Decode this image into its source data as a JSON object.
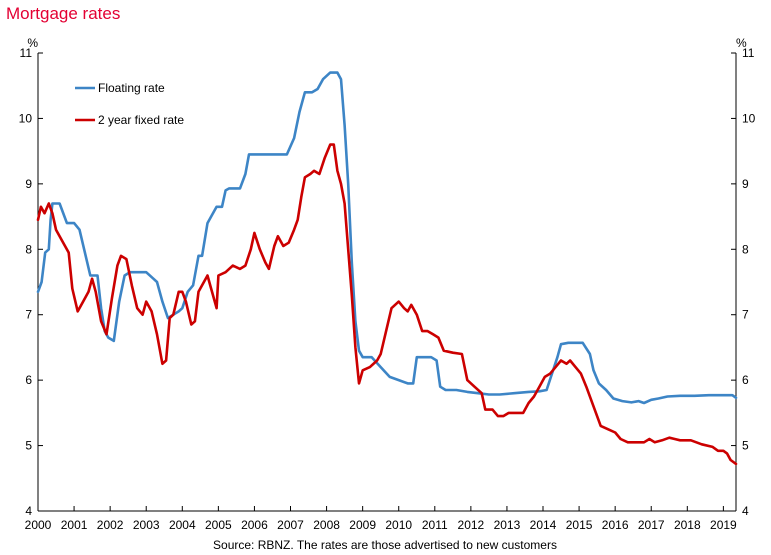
{
  "title": "Mortgage rates",
  "colors": {
    "title": "#e30033",
    "floating": "#3d85c6",
    "fixed": "#cc0000",
    "axis": "#000000"
  },
  "chart_data": {
    "type": "line",
    "title": "Mortgage rates",
    "y_unit_left": "%",
    "y_unit_right": "%",
    "ylim": [
      4,
      11
    ],
    "xlim": [
      2000,
      2019.35
    ],
    "y_ticks": [
      4,
      5,
      6,
      7,
      8,
      9,
      10,
      11
    ],
    "x_ticks": [
      2000,
      2001,
      2002,
      2003,
      2004,
      2005,
      2006,
      2007,
      2008,
      2009,
      2010,
      2011,
      2012,
      2013,
      2014,
      2015,
      2016,
      2017,
      2018,
      2019
    ],
    "grid": false,
    "legend_position": "top-left",
    "source": "Source: RBNZ. The rates are those advertised to new customers",
    "series": [
      {
        "name": "Floating rate",
        "color": "#3d85c6",
        "points": [
          [
            2000.0,
            7.35
          ],
          [
            2000.1,
            7.5
          ],
          [
            2000.2,
            7.95
          ],
          [
            2000.3,
            8.0
          ],
          [
            2000.35,
            8.45
          ],
          [
            2000.4,
            8.7
          ],
          [
            2000.6,
            8.7
          ],
          [
            2000.8,
            8.4
          ],
          [
            2001.0,
            8.4
          ],
          [
            2001.15,
            8.3
          ],
          [
            2001.3,
            7.95
          ],
          [
            2001.45,
            7.6
          ],
          [
            2001.65,
            7.6
          ],
          [
            2001.75,
            7.1
          ],
          [
            2001.85,
            6.75
          ],
          [
            2001.95,
            6.65
          ],
          [
            2002.1,
            6.6
          ],
          [
            2002.25,
            7.2
          ],
          [
            2002.4,
            7.6
          ],
          [
            2002.55,
            7.65
          ],
          [
            2002.7,
            7.65
          ],
          [
            2003.0,
            7.65
          ],
          [
            2003.2,
            7.55
          ],
          [
            2003.3,
            7.5
          ],
          [
            2003.45,
            7.2
          ],
          [
            2003.6,
            6.95
          ],
          [
            2003.75,
            7.0
          ],
          [
            2003.9,
            7.05
          ],
          [
            2004.0,
            7.1
          ],
          [
            2004.15,
            7.35
          ],
          [
            2004.3,
            7.45
          ],
          [
            2004.45,
            7.9
          ],
          [
            2004.55,
            7.9
          ],
          [
            2004.7,
            8.4
          ],
          [
            2004.8,
            8.5
          ],
          [
            2004.95,
            8.65
          ],
          [
            2005.1,
            8.65
          ],
          [
            2005.2,
            8.9
          ],
          [
            2005.3,
            8.93
          ],
          [
            2005.6,
            8.93
          ],
          [
            2005.75,
            9.15
          ],
          [
            2005.85,
            9.45
          ],
          [
            2006.2,
            9.45
          ],
          [
            2006.5,
            9.45
          ],
          [
            2006.9,
            9.45
          ],
          [
            2007.1,
            9.7
          ],
          [
            2007.25,
            10.1
          ],
          [
            2007.4,
            10.4
          ],
          [
            2007.6,
            10.4
          ],
          [
            2007.75,
            10.45
          ],
          [
            2007.9,
            10.6
          ],
          [
            2008.1,
            10.7
          ],
          [
            2008.3,
            10.7
          ],
          [
            2008.4,
            10.6
          ],
          [
            2008.5,
            9.9
          ],
          [
            2008.6,
            9.0
          ],
          [
            2008.7,
            7.8
          ],
          [
            2008.8,
            6.9
          ],
          [
            2008.9,
            6.45
          ],
          [
            2009.0,
            6.35
          ],
          [
            2009.25,
            6.35
          ],
          [
            2009.5,
            6.2
          ],
          [
            2009.75,
            6.05
          ],
          [
            2010.0,
            6.0
          ],
          [
            2010.25,
            5.95
          ],
          [
            2010.4,
            5.95
          ],
          [
            2010.5,
            6.35
          ],
          [
            2010.7,
            6.35
          ],
          [
            2010.9,
            6.35
          ],
          [
            2011.05,
            6.3
          ],
          [
            2011.15,
            5.9
          ],
          [
            2011.3,
            5.85
          ],
          [
            2011.6,
            5.85
          ],
          [
            2011.9,
            5.82
          ],
          [
            2012.2,
            5.8
          ],
          [
            2012.5,
            5.78
          ],
          [
            2012.8,
            5.78
          ],
          [
            2013.2,
            5.8
          ],
          [
            2013.6,
            5.82
          ],
          [
            2013.9,
            5.83
          ],
          [
            2014.1,
            5.85
          ],
          [
            2014.25,
            6.1
          ],
          [
            2014.4,
            6.35
          ],
          [
            2014.5,
            6.55
          ],
          [
            2014.7,
            6.57
          ],
          [
            2014.9,
            6.57
          ],
          [
            2015.1,
            6.57
          ],
          [
            2015.3,
            6.4
          ],
          [
            2015.4,
            6.15
          ],
          [
            2015.55,
            5.95
          ],
          [
            2015.75,
            5.85
          ],
          [
            2015.95,
            5.72
          ],
          [
            2016.2,
            5.68
          ],
          [
            2016.45,
            5.66
          ],
          [
            2016.65,
            5.68
          ],
          [
            2016.8,
            5.65
          ],
          [
            2017.0,
            5.7
          ],
          [
            2017.2,
            5.72
          ],
          [
            2017.45,
            5.75
          ],
          [
            2017.8,
            5.76
          ],
          [
            2018.2,
            5.76
          ],
          [
            2018.6,
            5.77
          ],
          [
            2019.0,
            5.77
          ],
          [
            2019.25,
            5.77
          ],
          [
            2019.35,
            5.73
          ]
        ]
      },
      {
        "name": "2 year fixed rate",
        "color": "#cc0000",
        "points": [
          [
            2000.0,
            8.45
          ],
          [
            2000.08,
            8.65
          ],
          [
            2000.18,
            8.55
          ],
          [
            2000.3,
            8.7
          ],
          [
            2000.4,
            8.55
          ],
          [
            2000.5,
            8.3
          ],
          [
            2000.65,
            8.15
          ],
          [
            2000.85,
            7.95
          ],
          [
            2000.95,
            7.4
          ],
          [
            2001.1,
            7.05
          ],
          [
            2001.25,
            7.2
          ],
          [
            2001.4,
            7.35
          ],
          [
            2001.5,
            7.55
          ],
          [
            2001.6,
            7.35
          ],
          [
            2001.75,
            6.9
          ],
          [
            2001.9,
            6.7
          ],
          [
            2002.05,
            7.25
          ],
          [
            2002.2,
            7.75
          ],
          [
            2002.3,
            7.9
          ],
          [
            2002.45,
            7.85
          ],
          [
            2002.6,
            7.45
          ],
          [
            2002.75,
            7.1
          ],
          [
            2002.9,
            7.0
          ],
          [
            2003.0,
            7.2
          ],
          [
            2003.15,
            7.05
          ],
          [
            2003.3,
            6.7
          ],
          [
            2003.45,
            6.25
          ],
          [
            2003.55,
            6.3
          ],
          [
            2003.65,
            6.95
          ],
          [
            2003.75,
            7.0
          ],
          [
            2003.9,
            7.35
          ],
          [
            2004.0,
            7.35
          ],
          [
            2004.1,
            7.2
          ],
          [
            2004.25,
            6.85
          ],
          [
            2004.35,
            6.9
          ],
          [
            2004.45,
            7.35
          ],
          [
            2004.6,
            7.5
          ],
          [
            2004.7,
            7.6
          ],
          [
            2004.8,
            7.4
          ],
          [
            2004.95,
            7.1
          ],
          [
            2005.0,
            7.6
          ],
          [
            2005.2,
            7.65
          ],
          [
            2005.4,
            7.75
          ],
          [
            2005.6,
            7.7
          ],
          [
            2005.75,
            7.75
          ],
          [
            2005.9,
            8.0
          ],
          [
            2006.0,
            8.25
          ],
          [
            2006.15,
            8.0
          ],
          [
            2006.3,
            7.8
          ],
          [
            2006.4,
            7.7
          ],
          [
            2006.55,
            8.05
          ],
          [
            2006.65,
            8.2
          ],
          [
            2006.8,
            8.05
          ],
          [
            2006.95,
            8.1
          ],
          [
            2007.1,
            8.3
          ],
          [
            2007.2,
            8.45
          ],
          [
            2007.3,
            8.8
          ],
          [
            2007.4,
            9.1
          ],
          [
            2007.55,
            9.15
          ],
          [
            2007.65,
            9.2
          ],
          [
            2007.8,
            9.15
          ],
          [
            2007.95,
            9.4
          ],
          [
            2008.1,
            9.6
          ],
          [
            2008.2,
            9.6
          ],
          [
            2008.3,
            9.2
          ],
          [
            2008.4,
            9.0
          ],
          [
            2008.5,
            8.7
          ],
          [
            2008.6,
            8.0
          ],
          [
            2008.7,
            7.3
          ],
          [
            2008.8,
            6.5
          ],
          [
            2008.9,
            5.95
          ],
          [
            2009.0,
            6.15
          ],
          [
            2009.2,
            6.2
          ],
          [
            2009.4,
            6.3
          ],
          [
            2009.5,
            6.4
          ],
          [
            2009.65,
            6.75
          ],
          [
            2009.8,
            7.1
          ],
          [
            2010.0,
            7.2
          ],
          [
            2010.15,
            7.1
          ],
          [
            2010.25,
            7.05
          ],
          [
            2010.35,
            7.15
          ],
          [
            2010.5,
            7.0
          ],
          [
            2010.65,
            6.75
          ],
          [
            2010.8,
            6.75
          ],
          [
            2010.95,
            6.7
          ],
          [
            2011.1,
            6.65
          ],
          [
            2011.25,
            6.45
          ],
          [
            2011.5,
            6.42
          ],
          [
            2011.75,
            6.4
          ],
          [
            2011.9,
            6.0
          ],
          [
            2012.1,
            5.9
          ],
          [
            2012.3,
            5.8
          ],
          [
            2012.4,
            5.55
          ],
          [
            2012.6,
            5.55
          ],
          [
            2012.75,
            5.45
          ],
          [
            2012.9,
            5.45
          ],
          [
            2013.05,
            5.5
          ],
          [
            2013.25,
            5.5
          ],
          [
            2013.45,
            5.5
          ],
          [
            2013.6,
            5.65
          ],
          [
            2013.75,
            5.75
          ],
          [
            2013.9,
            5.9
          ],
          [
            2014.05,
            6.05
          ],
          [
            2014.2,
            6.1
          ],
          [
            2014.35,
            6.2
          ],
          [
            2014.5,
            6.3
          ],
          [
            2014.65,
            6.25
          ],
          [
            2014.75,
            6.3
          ],
          [
            2014.9,
            6.2
          ],
          [
            2015.05,
            6.1
          ],
          [
            2015.2,
            5.9
          ],
          [
            2015.4,
            5.6
          ],
          [
            2015.6,
            5.3
          ],
          [
            2015.8,
            5.25
          ],
          [
            2016.0,
            5.2
          ],
          [
            2016.15,
            5.1
          ],
          [
            2016.35,
            5.05
          ],
          [
            2016.6,
            5.05
          ],
          [
            2016.8,
            5.05
          ],
          [
            2016.95,
            5.1
          ],
          [
            2017.1,
            5.05
          ],
          [
            2017.3,
            5.08
          ],
          [
            2017.5,
            5.12
          ],
          [
            2017.65,
            5.1
          ],
          [
            2017.8,
            5.08
          ],
          [
            2018.1,
            5.08
          ],
          [
            2018.4,
            5.02
          ],
          [
            2018.7,
            4.98
          ],
          [
            2018.85,
            4.92
          ],
          [
            2019.0,
            4.92
          ],
          [
            2019.1,
            4.88
          ],
          [
            2019.2,
            4.78
          ],
          [
            2019.35,
            4.72
          ]
        ]
      }
    ]
  }
}
